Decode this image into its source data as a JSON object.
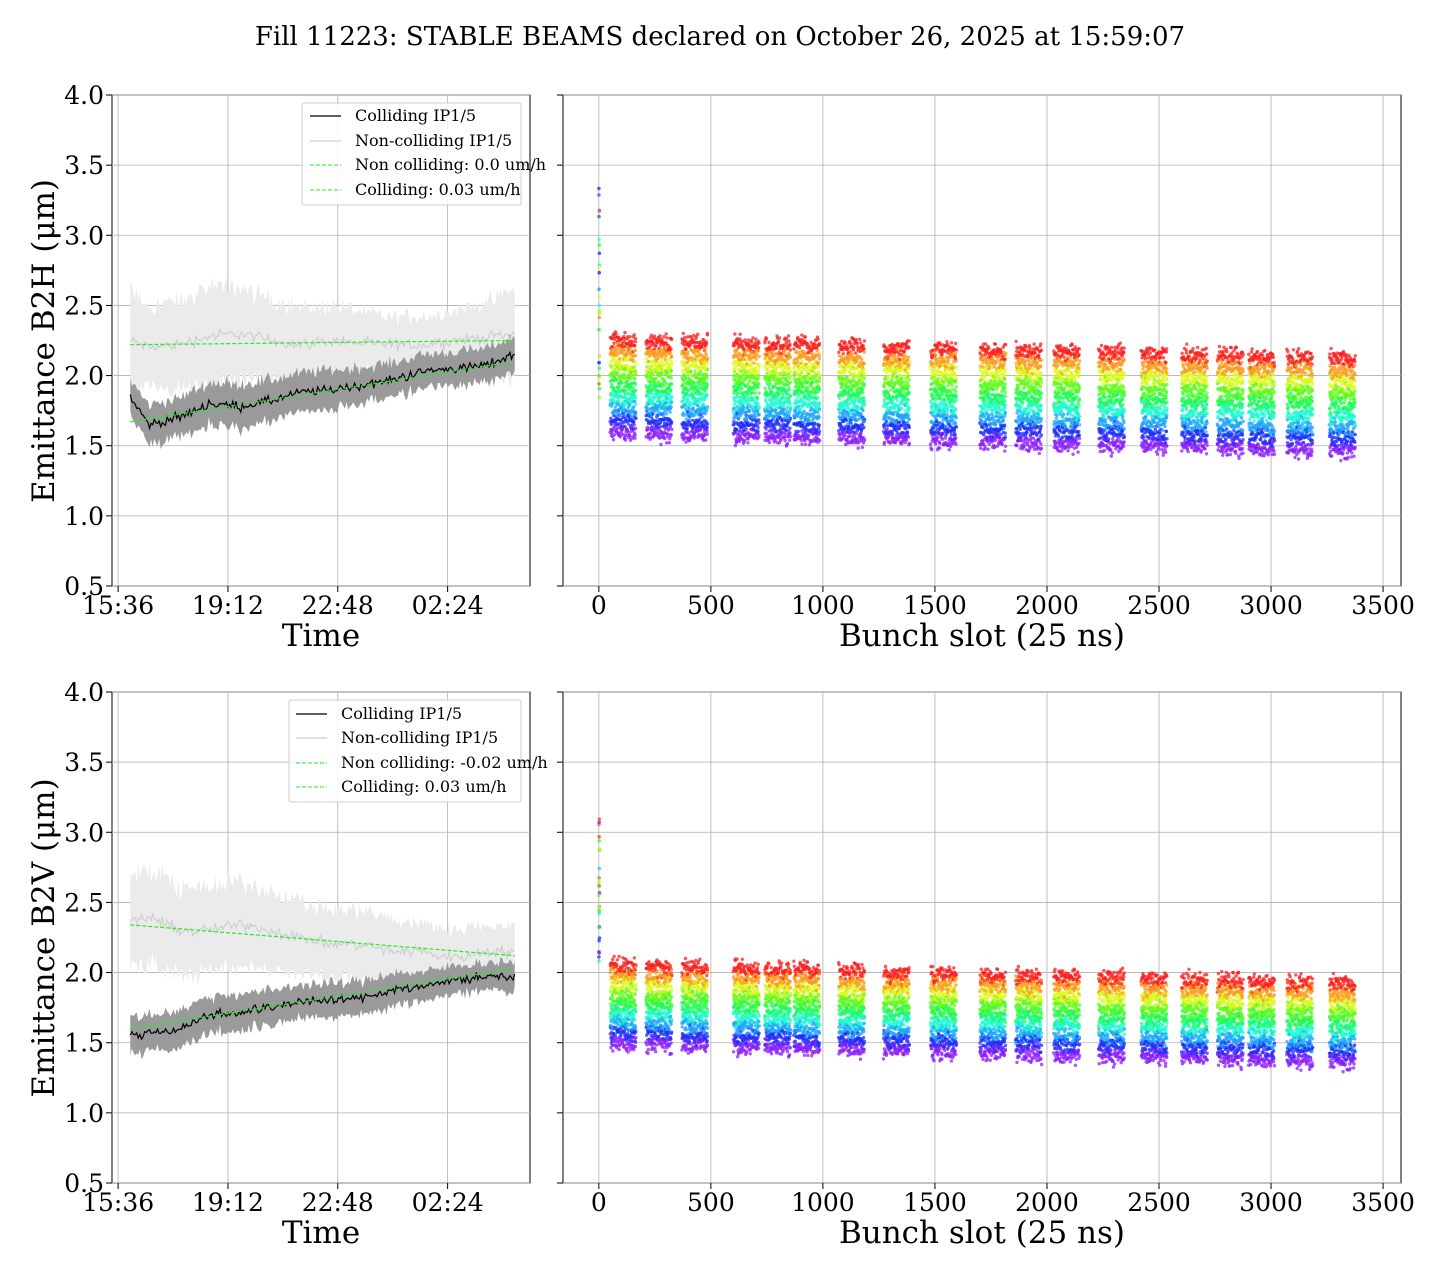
{
  "suptitle": "Fill 11223: STABLE BEAMS declared on October 26, 2025 at 15:59:07",
  "colors": {
    "colliding": "#000000",
    "colliding_band": "#9a9a9a",
    "noncolliding": "#cfcfcf",
    "noncolliding_band": "#ebebeb",
    "fit": "#22ee22",
    "grid": "#b0b0b0"
  },
  "chart_data": [
    {
      "panel": "B2H-time",
      "type": "line",
      "xlabel": "Time",
      "ylabel": "Emittance B2H (μm)",
      "xtick_labels": [
        "15:36",
        "19:12",
        "22:48",
        "02:24"
      ],
      "xtick_hours": [
        0,
        3.6,
        7.2,
        10.8
      ],
      "xlim_hours": [
        -0.2,
        13.5
      ],
      "ylim": [
        0.5,
        4.0
      ],
      "yticks": [
        "0.5",
        "1.0",
        "1.5",
        "2.0",
        "2.5",
        "3.0",
        "3.5",
        "4.0"
      ],
      "legend": {
        "placement": "upper right",
        "entries": [
          "Colliding IP1/5",
          "Non-colliding IP1/5",
          "Non colliding: 0.0 um/h",
          "Colliding: 0.03 um/h"
        ]
      },
      "time_hours": [
        0.4,
        1,
        2,
        3,
        4,
        5,
        6,
        7,
        8,
        9,
        10,
        11,
        12,
        13
      ],
      "colliding_mean": [
        1.85,
        1.65,
        1.7,
        1.8,
        1.78,
        1.82,
        1.88,
        1.9,
        1.93,
        1.97,
        2.03,
        2.05,
        2.07,
        2.15
      ],
      "colliding_band": [
        0.12,
        0.14,
        0.14,
        0.15,
        0.16,
        0.15,
        0.14,
        0.14,
        0.13,
        0.12,
        0.12,
        0.12,
        0.12,
        0.13
      ],
      "noncolliding_mean": [
        2.25,
        2.2,
        2.22,
        2.28,
        2.3,
        2.25,
        2.22,
        2.25,
        2.23,
        2.22,
        2.22,
        2.25,
        2.27,
        2.3
      ],
      "noncolliding_band": [
        0.35,
        0.3,
        0.3,
        0.35,
        0.32,
        0.3,
        0.25,
        0.25,
        0.22,
        0.2,
        0.2,
        0.22,
        0.25,
        0.3
      ],
      "fit_noncolliding": {
        "start": 2.22,
        "end": 2.25
      },
      "fit_colliding": {
        "start": 1.67,
        "end": 2.1
      }
    },
    {
      "panel": "B2H-bunch",
      "type": "scatter",
      "xlabel": "Bunch slot (25 ns)",
      "xlim": [
        -160,
        3580
      ],
      "ylim": [
        0.5,
        4.0
      ],
      "xticks": [
        0,
        500,
        1000,
        1500,
        2000,
        2500,
        3000,
        3500
      ],
      "color_scale": "rainbow (purple → red)",
      "trains_start": [
        50,
        210,
        370,
        600,
        740,
        870,
        1070,
        1270,
        1480,
        1700,
        1860,
        2030,
        2230,
        2420,
        2600,
        2760,
        2900,
        3070,
        3260
      ],
      "train_length": 115,
      "band_low_at_0": 1.6,
      "band_high_at_0": 2.25,
      "band_drift_per_1000": -0.04,
      "first_bunch_spike": [
        1.8,
        3.35
      ]
    },
    {
      "panel": "B2V-time",
      "type": "line",
      "xlabel": "Time",
      "ylabel": "Emittance B2V (μm)",
      "xtick_labels": [
        "15:36",
        "19:12",
        "22:48",
        "02:24"
      ],
      "xtick_hours": [
        0,
        3.6,
        7.2,
        10.8
      ],
      "xlim_hours": [
        -0.2,
        13.5
      ],
      "ylim": [
        0.5,
        4.0
      ],
      "yticks": [
        "0.5",
        "1.0",
        "1.5",
        "2.0",
        "2.5",
        "3.0",
        "3.5",
        "4.0"
      ],
      "legend": {
        "placement": "upper right",
        "entries": [
          "Colliding IP1/5",
          "Non-colliding IP1/5",
          "Non colliding: -0.02 um/h",
          "Colliding: 0.03 um/h"
        ]
      },
      "time_hours": [
        0.4,
        1,
        2,
        3,
        4,
        5,
        6,
        7,
        8,
        9,
        10,
        11,
        12,
        13
      ],
      "colliding_mean": [
        1.55,
        1.57,
        1.6,
        1.7,
        1.72,
        1.75,
        1.8,
        1.8,
        1.82,
        1.88,
        1.9,
        1.95,
        1.97,
        1.98
      ],
      "colliding_band": [
        0.13,
        0.13,
        0.13,
        0.13,
        0.13,
        0.12,
        0.12,
        0.12,
        0.12,
        0.12,
        0.1,
        0.1,
        0.1,
        0.1
      ],
      "noncolliding_mean": [
        2.35,
        2.4,
        2.3,
        2.3,
        2.35,
        2.3,
        2.25,
        2.2,
        2.2,
        2.15,
        2.15,
        2.1,
        2.15,
        2.15
      ],
      "noncolliding_band": [
        0.35,
        0.32,
        0.32,
        0.3,
        0.3,
        0.28,
        0.25,
        0.25,
        0.25,
        0.22,
        0.2,
        0.2,
        0.2,
        0.18
      ],
      "fit_noncolliding": {
        "start": 2.34,
        "end": 2.12
      },
      "fit_colliding": {
        "start": 1.6,
        "end": 2.03
      }
    },
    {
      "panel": "B2V-bunch",
      "type": "scatter",
      "xlabel": "Bunch slot (25 ns)",
      "xlim": [
        -160,
        3580
      ],
      "ylim": [
        0.5,
        4.0
      ],
      "xticks": [
        0,
        500,
        1000,
        1500,
        2000,
        2500,
        3000,
        3500
      ],
      "color_scale": "rainbow (purple → red)",
      "trains_start": [
        50,
        210,
        370,
        600,
        740,
        870,
        1070,
        1270,
        1480,
        1700,
        1860,
        2030,
        2230,
        2420,
        2600,
        2760,
        2900,
        3070,
        3260
      ],
      "train_length": 115,
      "band_low_at_0": 1.5,
      "band_high_at_0": 2.05,
      "band_drift_per_1000": -0.04,
      "first_bunch_spike": [
        2.0,
        3.1
      ]
    }
  ]
}
